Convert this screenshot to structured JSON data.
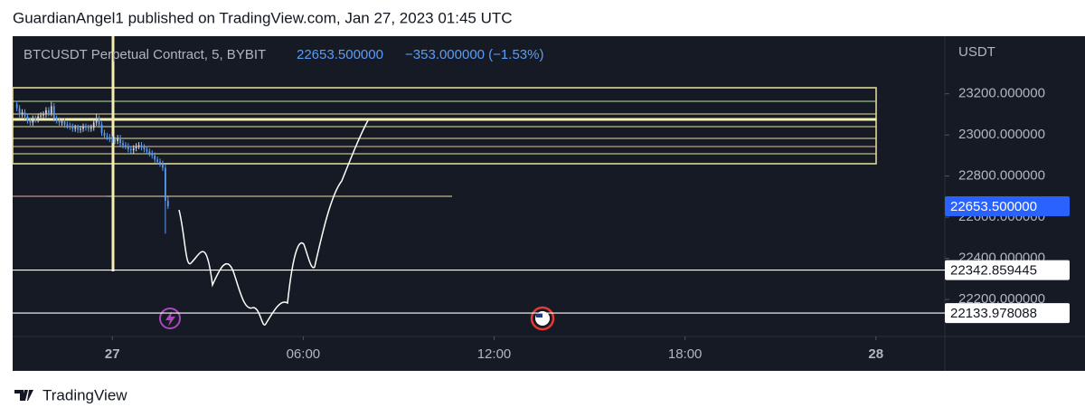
{
  "header": {
    "text": "GuardianAngel1 published on TradingView.com, Jan 27, 2023 01:45 UTC"
  },
  "footer": {
    "brand": "TradingView"
  },
  "chart_data": {
    "type": "candlestick",
    "title": "BTCUSDT Perpetual Contract, 5, BYBIT",
    "change": "−353.000000 (−1.53%)",
    "y_unit": "USDT",
    "up_color": "#d1d4dc",
    "down_color": "#5b9cf6",
    "x": [
      -180,
      -175,
      -170,
      -165,
      -160,
      -155,
      -150,
      -145,
      -140,
      -135,
      -130,
      -125,
      -120,
      -115,
      -110,
      -105,
      -100,
      -95,
      -90,
      -85,
      -80,
      -75,
      -70,
      -65,
      -60,
      -55,
      -50,
      -45,
      -40,
      -35,
      -30,
      -25,
      -20,
      -15,
      -10,
      -5,
      0,
      5,
      10,
      15,
      20,
      25,
      30,
      35,
      40,
      45,
      50,
      55,
      60,
      65,
      70,
      75,
      80,
      85,
      90,
      95,
      100,
      105
    ],
    "open": [
      23150,
      23130,
      23100,
      23110,
      23090,
      23070,
      23060,
      23080,
      23075,
      23090,
      23095,
      23100,
      23120,
      23105,
      23140,
      23080,
      23070,
      23060,
      23065,
      23050,
      23045,
      23040,
      23030,
      23035,
      23025,
      23030,
      23040,
      23035,
      23030,
      23035,
      23060,
      23080,
      23050,
      23010,
      22995,
      22990,
      22980,
      22975,
      22970,
      22985,
      22960,
      22950,
      22945,
      22930,
      22925,
      22935,
      22945,
      22950,
      22940,
      22930,
      22920,
      22910,
      22900,
      22880,
      22870,
      22860,
      22840,
      22680
    ],
    "high": [
      23165,
      23145,
      23125,
      23125,
      23105,
      23085,
      23095,
      23095,
      23105,
      23110,
      23115,
      23135,
      23135,
      23160,
      23155,
      23095,
      23085,
      23080,
      23080,
      23065,
      23060,
      23055,
      23050,
      23050,
      23045,
      23055,
      23055,
      23050,
      23050,
      23075,
      23100,
      23095,
      23065,
      23025,
      23010,
      23005,
      22995,
      22990,
      23000,
      23000,
      22975,
      22965,
      22960,
      22945,
      22950,
      22960,
      22965,
      22965,
      22955,
      22945,
      22935,
      22925,
      22915,
      22895,
      22885,
      22875,
      22855,
      22700
    ],
    "low": [
      23115,
      23085,
      23085,
      23075,
      23055,
      23045,
      23045,
      23060,
      23060,
      23075,
      23080,
      23085,
      23090,
      23090,
      23065,
      23055,
      23045,
      23045,
      23035,
      23030,
      23025,
      23015,
      23015,
      23010,
      23010,
      23015,
      23020,
      23015,
      23015,
      23020,
      23045,
      23035,
      22995,
      22980,
      22975,
      22965,
      22960,
      22955,
      22955,
      22945,
      22935,
      22930,
      22915,
      22910,
      22910,
      22920,
      22930,
      22925,
      22915,
      22905,
      22895,
      22885,
      22865,
      22855,
      22845,
      22825,
      22520,
      22640
    ],
    "close": [
      23130,
      23100,
      23110,
      23090,
      23070,
      23060,
      23080,
      23075,
      23090,
      23095,
      23100,
      23120,
      23105,
      23140,
      23080,
      23070,
      23060,
      23065,
      23050,
      23045,
      23040,
      23030,
      23035,
      23025,
      23030,
      23040,
      23035,
      23030,
      23035,
      23060,
      23080,
      23050,
      23010,
      22995,
      22990,
      22980,
      22975,
      22970,
      22985,
      22960,
      22950,
      22945,
      22930,
      22925,
      22935,
      22945,
      22950,
      22940,
      22930,
      22920,
      22910,
      22900,
      22880,
      22870,
      22860,
      22840,
      22680,
      22653.5
    ],
    "xlim": [
      -188,
      1570
    ],
    "xticks": [
      {
        "value": 0,
        "label": "27"
      },
      {
        "value": 360,
        "label": "06:00"
      },
      {
        "value": 720,
        "label": "12:00"
      },
      {
        "value": 1080,
        "label": "18:00"
      },
      {
        "value": 1440,
        "label": "28"
      }
    ],
    "ylim": [
      22020,
      23480
    ],
    "yticks": [
      {
        "value": 22200,
        "label": "22200.000000"
      },
      {
        "value": 22400,
        "label": "22400.000000"
      },
      {
        "value": 22600,
        "label": "22600.000000"
      },
      {
        "value": 22800,
        "label": "22800.000000"
      },
      {
        "value": 23000,
        "label": "23000.000000"
      },
      {
        "value": 23200,
        "label": "23200.000000"
      }
    ],
    "last_price": {
      "value": 22653.5,
      "label": "22653.500000",
      "color": "#2962ff"
    },
    "price_lines": [
      {
        "value": 22342.859445,
        "color": "#ffffff"
      },
      {
        "value": 22133.978088,
        "color": "#ffffff"
      }
    ]
  }
}
